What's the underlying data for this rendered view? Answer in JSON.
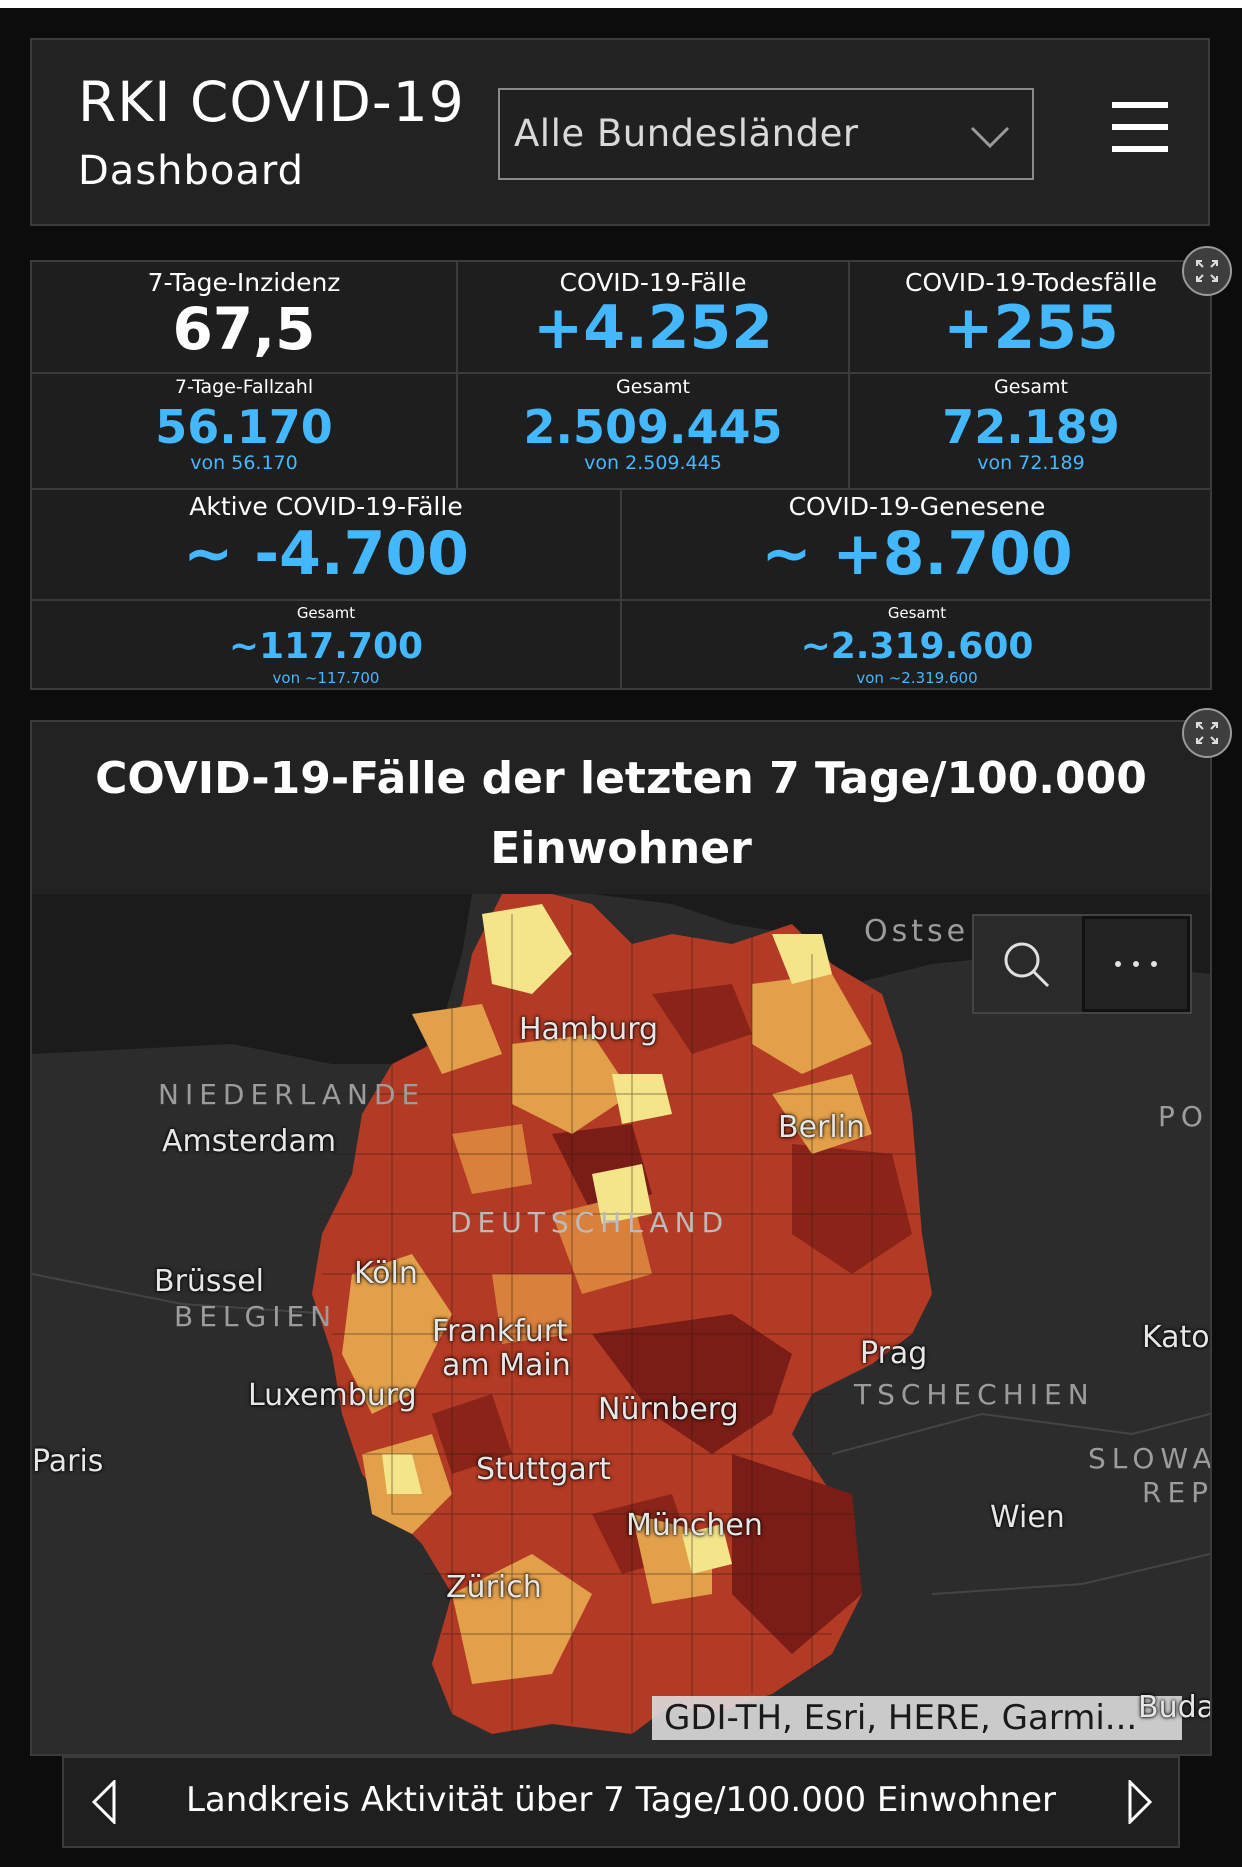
{
  "header": {
    "title": "RKI COVID-19",
    "subtitle": "Dashboard",
    "dropdown_value": "Alle Bundesländer",
    "menu_icon": "hamburger-menu-icon"
  },
  "stats": {
    "incidence": {
      "label": "7-Tage-Inzidenz",
      "value": "67,5"
    },
    "cases": {
      "label": "COVID-19-Fälle",
      "value": "+4.252"
    },
    "deaths": {
      "label": "COVID-19-Todesfälle",
      "value": "+255"
    },
    "case_count_7d": {
      "label": "7-Tage-Fallzahl",
      "value": "56.170",
      "sub": "von 56.170"
    },
    "cases_total": {
      "label": "Gesamt",
      "value": "2.509.445",
      "sub": "von 2.509.445"
    },
    "deaths_total": {
      "label": "Gesamt",
      "value": "72.189",
      "sub": "von 72.189"
    },
    "active": {
      "label": "Aktive COVID-19-Fälle",
      "value": "~ -4.700"
    },
    "recovered": {
      "label": "COVID-19-Genesene",
      "value": "~ +8.700"
    },
    "active_total": {
      "label": "Gesamt",
      "value": "~117.700",
      "sub": "von ~117.700"
    },
    "recovered_total": {
      "label": "Gesamt",
      "value": "~2.319.600",
      "sub": "von ~2.319.600"
    }
  },
  "map": {
    "title_line1": "COVID-19-Fälle der letzten 7 Tage/100.000",
    "title_line2": "Einwohner",
    "cities": {
      "hamburg": "Hamburg",
      "berlin": "Berlin",
      "amsterdam": "Amsterdam",
      "koeln": "Köln",
      "bruessel": "Brüssel",
      "frankfurt1": "Frankfurt",
      "frankfurt2": "am Main",
      "luxemburg": "Luxemburg",
      "nuernberg": "Nürnberg",
      "prag": "Prag",
      "paris": "Paris",
      "stuttgart": "Stuttgart",
      "muenchen": "München",
      "wien": "Wien",
      "zuerich": "Zürich",
      "kato": "Kato",
      "buda": "Buda"
    },
    "countries": {
      "niederlande": "NIEDERLANDE",
      "deutschland": "DEUTSCHLAND",
      "belgien": "BELGIEN",
      "tschechien": "TSCHECHIEN",
      "slowa": "SLOWA",
      "ref": "REP",
      "po": "PO",
      "ostsee": "Ostse"
    },
    "attribution": "GDI-TH, Esri, HERE, Garmi...",
    "colors": {
      "dark_red": "#7a1d16",
      "red": "#b33a24",
      "orange_red": "#c9582b",
      "orange": "#e3a04a",
      "light_yellow": "#f4e58a"
    }
  },
  "footer": {
    "label": "Landkreis Aktivität über 7 Tage/100.000 Einwohner"
  }
}
